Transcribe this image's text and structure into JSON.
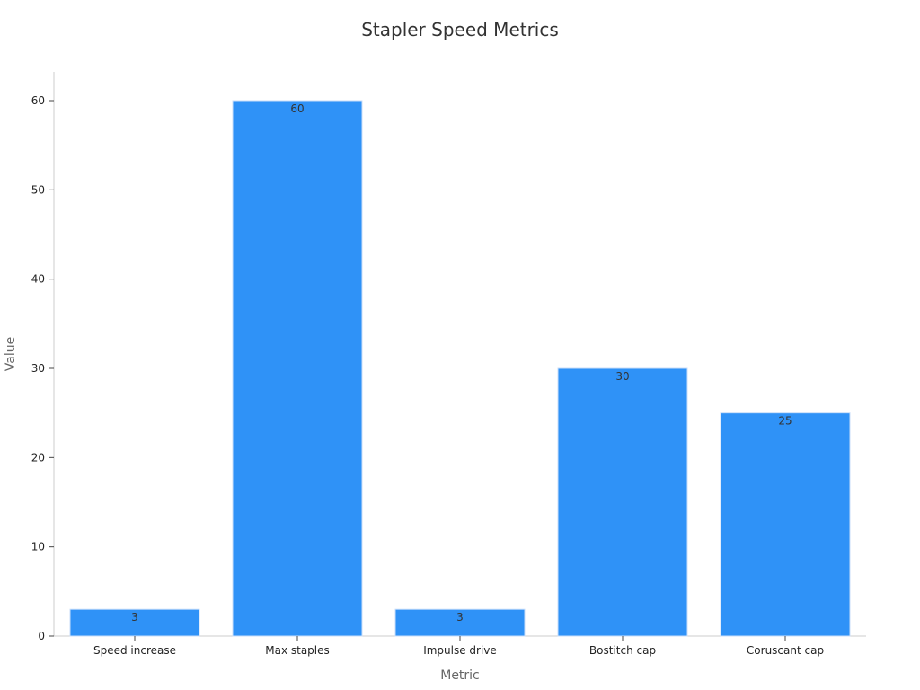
{
  "chart_data": {
    "type": "bar",
    "title": "Stapler Speed Metrics",
    "xlabel": "Metric",
    "ylabel": "Value",
    "categories": [
      "Speed increase",
      "Max staples",
      "Impulse drive",
      "Bostitch cap",
      "Coruscant cap"
    ],
    "values": [
      3,
      60,
      3,
      30,
      25
    ],
    "data_labels": [
      "3",
      "60",
      "3",
      "30",
      "25"
    ],
    "ylim": [
      0,
      63
    ],
    "yticks": [
      0,
      10,
      20,
      30,
      40,
      50,
      60
    ],
    "grid": false,
    "legend": "none",
    "bar_color": "#2f92f7"
  }
}
